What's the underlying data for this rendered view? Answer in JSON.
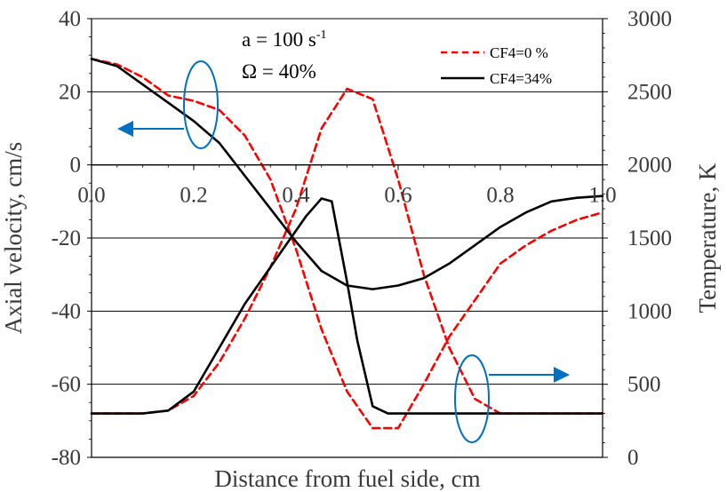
{
  "chart_data": {
    "type": "line",
    "title": "",
    "xlabel": "Distance from fuel side, cm",
    "ylabel": "Axial velocity, cm/s",
    "y2label": "Temperature, K",
    "xlim": [
      0.0,
      1.0
    ],
    "ylim": [
      -80,
      40
    ],
    "y2lim": [
      0,
      3000
    ],
    "x_ticks": [
      "0.0",
      "0.2",
      "0.4",
      "0.6",
      "0.8",
      "1.0"
    ],
    "y_ticks": [
      "40",
      "20",
      "0",
      "-20",
      "-40",
      "-60",
      "-80"
    ],
    "y2_ticks": [
      "3000",
      "2500",
      "2000",
      "1500",
      "1000",
      "500",
      "0"
    ],
    "grid": "horizontal",
    "annotation_lines": [
      "a = 100 s",
      "Ω = 40%"
    ],
    "annotation_superscript": "-1",
    "legend_position": "top-right",
    "colors": {
      "dashed": "#ff0000",
      "solid": "#000000",
      "marker": "#0070c0",
      "grid": "#000000",
      "text": "#3a3a3a"
    },
    "series": [
      {
        "name": "CF4=0 %",
        "style": "dashed",
        "axis": "left",
        "quantity": "axial velocity",
        "x": [
          0.0,
          0.05,
          0.1,
          0.15,
          0.2,
          0.25,
          0.3,
          0.35,
          0.4,
          0.45,
          0.5,
          0.55,
          0.6,
          0.65,
          0.7,
          0.75,
          0.8,
          0.85,
          0.9,
          0.95,
          1.0
        ],
        "values": [
          29,
          27.5,
          24,
          19,
          17.5,
          15,
          8,
          -4,
          -23,
          -45,
          -62,
          -72,
          -72,
          -60,
          -47,
          -37,
          -27,
          -22,
          -18,
          -15,
          -13
        ]
      },
      {
        "name": "CF4=0 %",
        "style": "dashed",
        "axis": "right",
        "quantity": "temperature",
        "x": [
          0.0,
          0.1,
          0.15,
          0.2,
          0.25,
          0.3,
          0.35,
          0.4,
          0.45,
          0.5,
          0.55,
          0.6,
          0.65,
          0.7,
          0.75,
          0.8,
          0.85,
          0.9,
          0.95,
          1.0
        ],
        "values": [
          300,
          300,
          320,
          420,
          650,
          950,
          1300,
          1700,
          2250,
          2520,
          2450,
          1900,
          1250,
          750,
          400,
          300,
          300,
          300,
          300,
          300
        ]
      },
      {
        "name": "CF4=34%",
        "style": "solid",
        "axis": "left",
        "quantity": "axial velocity",
        "x": [
          0.0,
          0.05,
          0.1,
          0.15,
          0.2,
          0.25,
          0.3,
          0.35,
          0.4,
          0.45,
          0.5,
          0.55,
          0.6,
          0.65,
          0.7,
          0.75,
          0.8,
          0.85,
          0.9,
          0.95,
          1.0
        ],
        "values": [
          29,
          27,
          22,
          17,
          12,
          6,
          -3,
          -12,
          -21,
          -29,
          -33,
          -34,
          -33,
          -31,
          -27,
          -22,
          -17,
          -13,
          -10,
          -9,
          -8.5
        ]
      },
      {
        "name": "CF4=34%",
        "style": "solid",
        "axis": "right",
        "quantity": "temperature",
        "x": [
          0.0,
          0.1,
          0.15,
          0.2,
          0.25,
          0.3,
          0.35,
          0.4,
          0.42,
          0.45,
          0.47,
          0.5,
          0.52,
          0.55,
          0.58,
          0.6,
          0.65,
          0.7,
          0.75,
          0.8,
          0.85,
          0.9,
          0.95,
          1.0
        ],
        "values": [
          300,
          300,
          320,
          450,
          750,
          1050,
          1300,
          1550,
          1650,
          1770,
          1750,
          1200,
          800,
          350,
          300,
          300,
          300,
          300,
          300,
          300,
          300,
          300,
          300,
          300
        ]
      }
    ]
  }
}
